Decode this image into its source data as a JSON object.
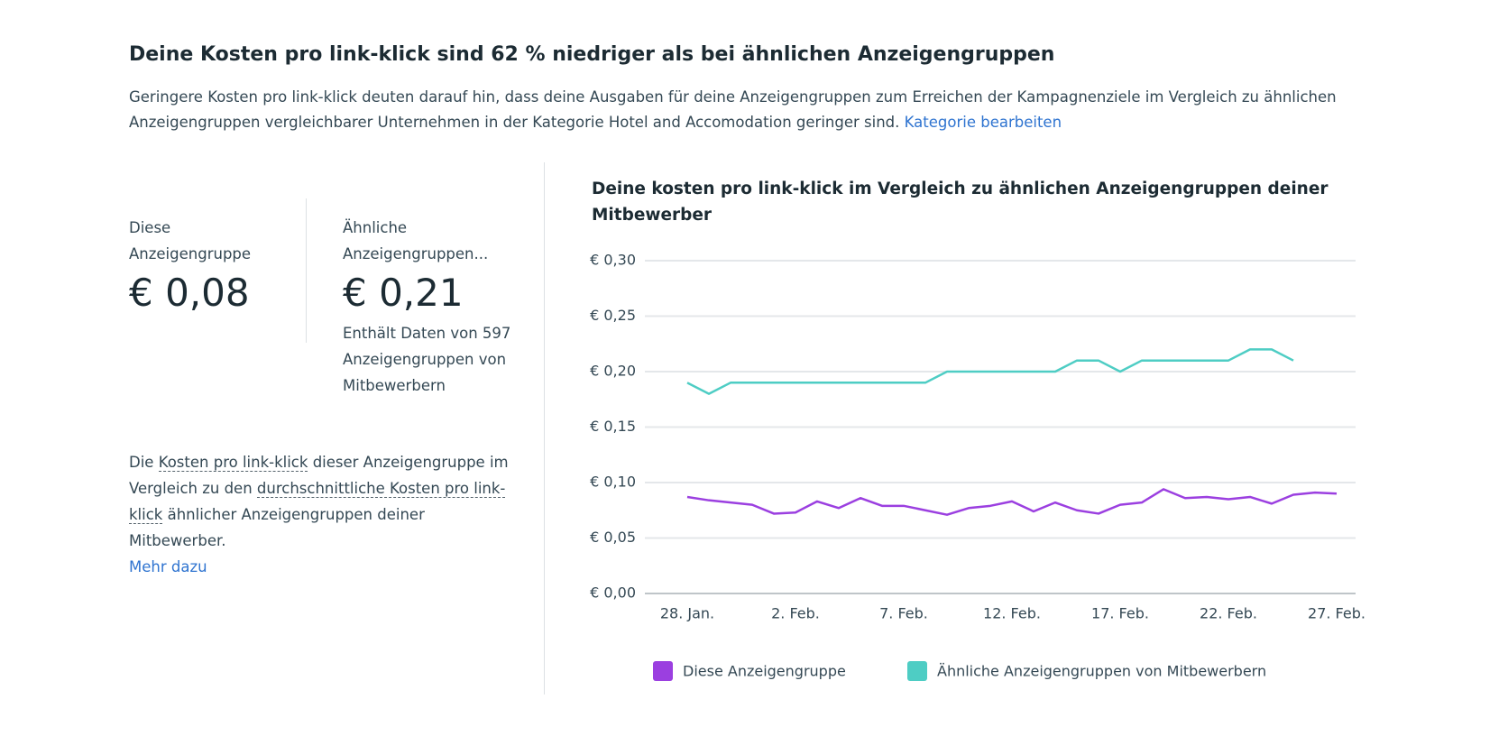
{
  "header": {
    "title": "Deine Kosten pro link-klick sind 62 % niedriger als bei ähnlichen Anzeigengruppen",
    "description": "Geringere Kosten pro link-klick deuten darauf hin, dass deine Ausgaben für deine Anzeigengruppen zum Erreichen der Kampagnenziele im Vergleich zu ähnlichen Anzeigengruppen vergleichbarer Unternehmen in der Kategorie Hotel and Accomodation geringer sind.",
    "link": "Kategorie bearbeiten"
  },
  "metrics": [
    {
      "label": "Diese Anzeigengruppe",
      "value": "€ 0,08"
    },
    {
      "label": "Ähnliche Anzeigengruppen...",
      "value": "€ 0,21",
      "note": "Enthält Daten von 597 Anzeigengruppen von Mitbewerbern"
    }
  ],
  "explanation": {
    "part_1": "Die",
    "term_1": "Kosten pro link-klick",
    "part_2": "dieser Anzeigengruppe im Vergleich zu den",
    "term_2": "durchschnittliche Kosten pro link-klick",
    "part_3": "ähnlicher Anzeigengruppen deiner Mitbewerber.",
    "link": "Mehr dazu"
  },
  "chart_data": {
    "type": "line",
    "title": "Deine kosten pro link-klick im Vergleich zu ähnlichen Anzeigengruppen deiner Mitbewerber",
    "categories": [
      "28. Jan.",
      null,
      null,
      null,
      null,
      "2. Feb.",
      null,
      null,
      null,
      null,
      "7. Feb.",
      null,
      null,
      null,
      null,
      "12. Feb.",
      null,
      null,
      null,
      null,
      "17. Feb.",
      null,
      null,
      null,
      null,
      "22. Feb.",
      null,
      null,
      null,
      null,
      "27. Feb."
    ],
    "series": [
      {
        "name": "Diese Anzeigengruppe",
        "color": "#9b3fe0",
        "values": [
          0.087,
          0.084,
          0.082,
          0.08,
          0.072,
          0.073,
          0.083,
          0.077,
          0.086,
          0.079,
          0.079,
          0.075,
          0.071,
          0.077,
          0.079,
          0.083,
          0.074,
          0.082,
          0.075,
          0.072,
          0.08,
          0.082,
          0.094,
          0.086,
          0.087,
          0.085,
          0.087,
          0.081,
          0.089,
          0.091,
          0.09
        ]
      },
      {
        "name": "Ähnliche Anzeigengruppen von Mitbewerbern",
        "color": "#4ecdc4",
        "values": [
          0.19,
          0.18,
          0.19,
          0.19,
          0.19,
          0.19,
          0.19,
          0.19,
          0.19,
          0.19,
          0.19,
          0.19,
          0.2,
          0.2,
          0.2,
          0.2,
          0.2,
          0.2,
          0.21,
          0.21,
          0.2,
          0.21,
          0.21,
          0.21,
          0.21,
          0.21,
          0.22,
          0.22,
          0.21,
          null,
          null
        ]
      }
    ],
    "ylim": [
      0,
      0.3
    ],
    "yticks": [
      {
        "value": 0,
        "label": "€ 0,00"
      },
      {
        "value": 0.05,
        "label": "€ 0,05"
      },
      {
        "value": 0.1,
        "label": "€ 0,10"
      },
      {
        "value": 0.15,
        "label": "€ 0,15"
      },
      {
        "value": 0.2,
        "label": "€ 0,20"
      },
      {
        "value": 0.25,
        "label": "€ 0,25"
      },
      {
        "value": 0.3,
        "label": "€ 0,30"
      }
    ],
    "grid": true,
    "legend": "bottom"
  }
}
